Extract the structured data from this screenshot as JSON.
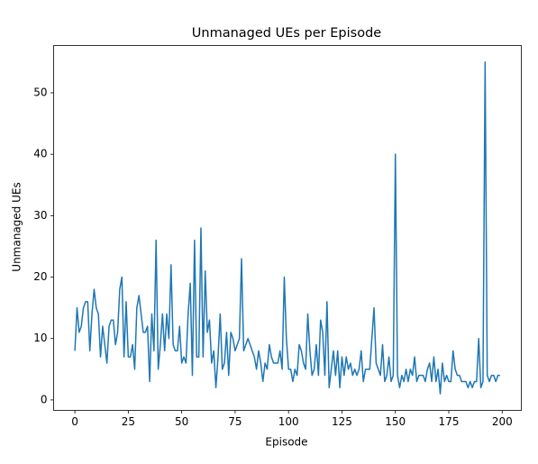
{
  "chart_data": {
    "type": "line",
    "title": "Unmanaged UEs per Episode",
    "xlabel": "Episode",
    "ylabel": "Unmanaged UEs",
    "x": [
      0,
      1,
      2,
      3,
      4,
      5,
      6,
      7,
      8,
      9,
      10,
      11,
      12,
      13,
      14,
      15,
      16,
      17,
      18,
      19,
      20,
      21,
      22,
      23,
      24,
      25,
      26,
      27,
      28,
      29,
      30,
      31,
      32,
      33,
      34,
      35,
      36,
      37,
      38,
      39,
      40,
      41,
      42,
      43,
      44,
      45,
      46,
      47,
      48,
      49,
      50,
      51,
      52,
      53,
      54,
      55,
      56,
      57,
      58,
      59,
      60,
      61,
      62,
      63,
      64,
      65,
      66,
      67,
      68,
      69,
      70,
      71,
      72,
      73,
      74,
      75,
      76,
      77,
      78,
      79,
      80,
      81,
      82,
      83,
      84,
      85,
      86,
      87,
      88,
      89,
      90,
      91,
      92,
      93,
      94,
      95,
      96,
      97,
      98,
      99,
      100,
      101,
      102,
      103,
      104,
      105,
      106,
      107,
      108,
      109,
      110,
      111,
      112,
      113,
      114,
      115,
      116,
      117,
      118,
      119,
      120,
      121,
      122,
      123,
      124,
      125,
      126,
      127,
      128,
      129,
      130,
      131,
      132,
      133,
      134,
      135,
      136,
      137,
      138,
      139,
      140,
      141,
      142,
      143,
      144,
      145,
      146,
      147,
      148,
      149,
      150,
      151,
      152,
      153,
      154,
      155,
      156,
      157,
      158,
      159,
      160,
      161,
      162,
      163,
      164,
      165,
      166,
      167,
      168,
      169,
      170,
      171,
      172,
      173,
      174,
      175,
      176,
      177,
      178,
      179,
      180,
      181,
      182,
      183,
      184,
      185,
      186,
      187,
      188,
      189,
      190,
      191,
      192,
      193,
      194,
      195,
      196,
      197,
      198,
      199
    ],
    "series": [
      {
        "name": "Unmanaged UEs",
        "color": "#1f77b4",
        "values": [
          8,
          15,
          11,
          12,
          15,
          16,
          16,
          8,
          14,
          18,
          15,
          14,
          7,
          12,
          9,
          6,
          12,
          13,
          13,
          9,
          11,
          18,
          20,
          7,
          16,
          7,
          7,
          9,
          5,
          15,
          17,
          14,
          11,
          11,
          12,
          3,
          14,
          8,
          26,
          5,
          9,
          14,
          8,
          14,
          10,
          22,
          9,
          8,
          8,
          12,
          6,
          7,
          6,
          14,
          19,
          4,
          26,
          7,
          7,
          28,
          7,
          21,
          11,
          13,
          6,
          8,
          2,
          7,
          14,
          5,
          6,
          11,
          4,
          11,
          10,
          8,
          9,
          10,
          23,
          8,
          9,
          10,
          9,
          8,
          7,
          5,
          8,
          6,
          3,
          6,
          5,
          9,
          7,
          6,
          6,
          6,
          8,
          5,
          20,
          10,
          5,
          5,
          3,
          5,
          4,
          9,
          8,
          6,
          5,
          14,
          8,
          4,
          5,
          9,
          4,
          13,
          11,
          4,
          16,
          2,
          5,
          8,
          4,
          8,
          2,
          7,
          4,
          7,
          5,
          6,
          4,
          5,
          4,
          5,
          8,
          3,
          5,
          5,
          5,
          10,
          15,
          6,
          5,
          4,
          9,
          3,
          4,
          7,
          3,
          4,
          40,
          4,
          2,
          4,
          3,
          5,
          3,
          5,
          4,
          7,
          3,
          4,
          4,
          4,
          3,
          5,
          6,
          3,
          7,
          3,
          5,
          1,
          6,
          3,
          4,
          3,
          3,
          8,
          5,
          4,
          4,
          3,
          3,
          3,
          2,
          3,
          2,
          3,
          3,
          10,
          2,
          3,
          55,
          4,
          3,
          4,
          4,
          3,
          4,
          4
        ]
      }
    ],
    "xlim": [
      -9.95,
      208.95
    ],
    "xticks": [
      0,
      25,
      50,
      75,
      100,
      125,
      150,
      175,
      200
    ],
    "ylim": [
      -1.7,
      57.7
    ],
    "yticks": [
      0,
      10,
      20,
      30,
      40,
      50
    ],
    "grid": false
  }
}
